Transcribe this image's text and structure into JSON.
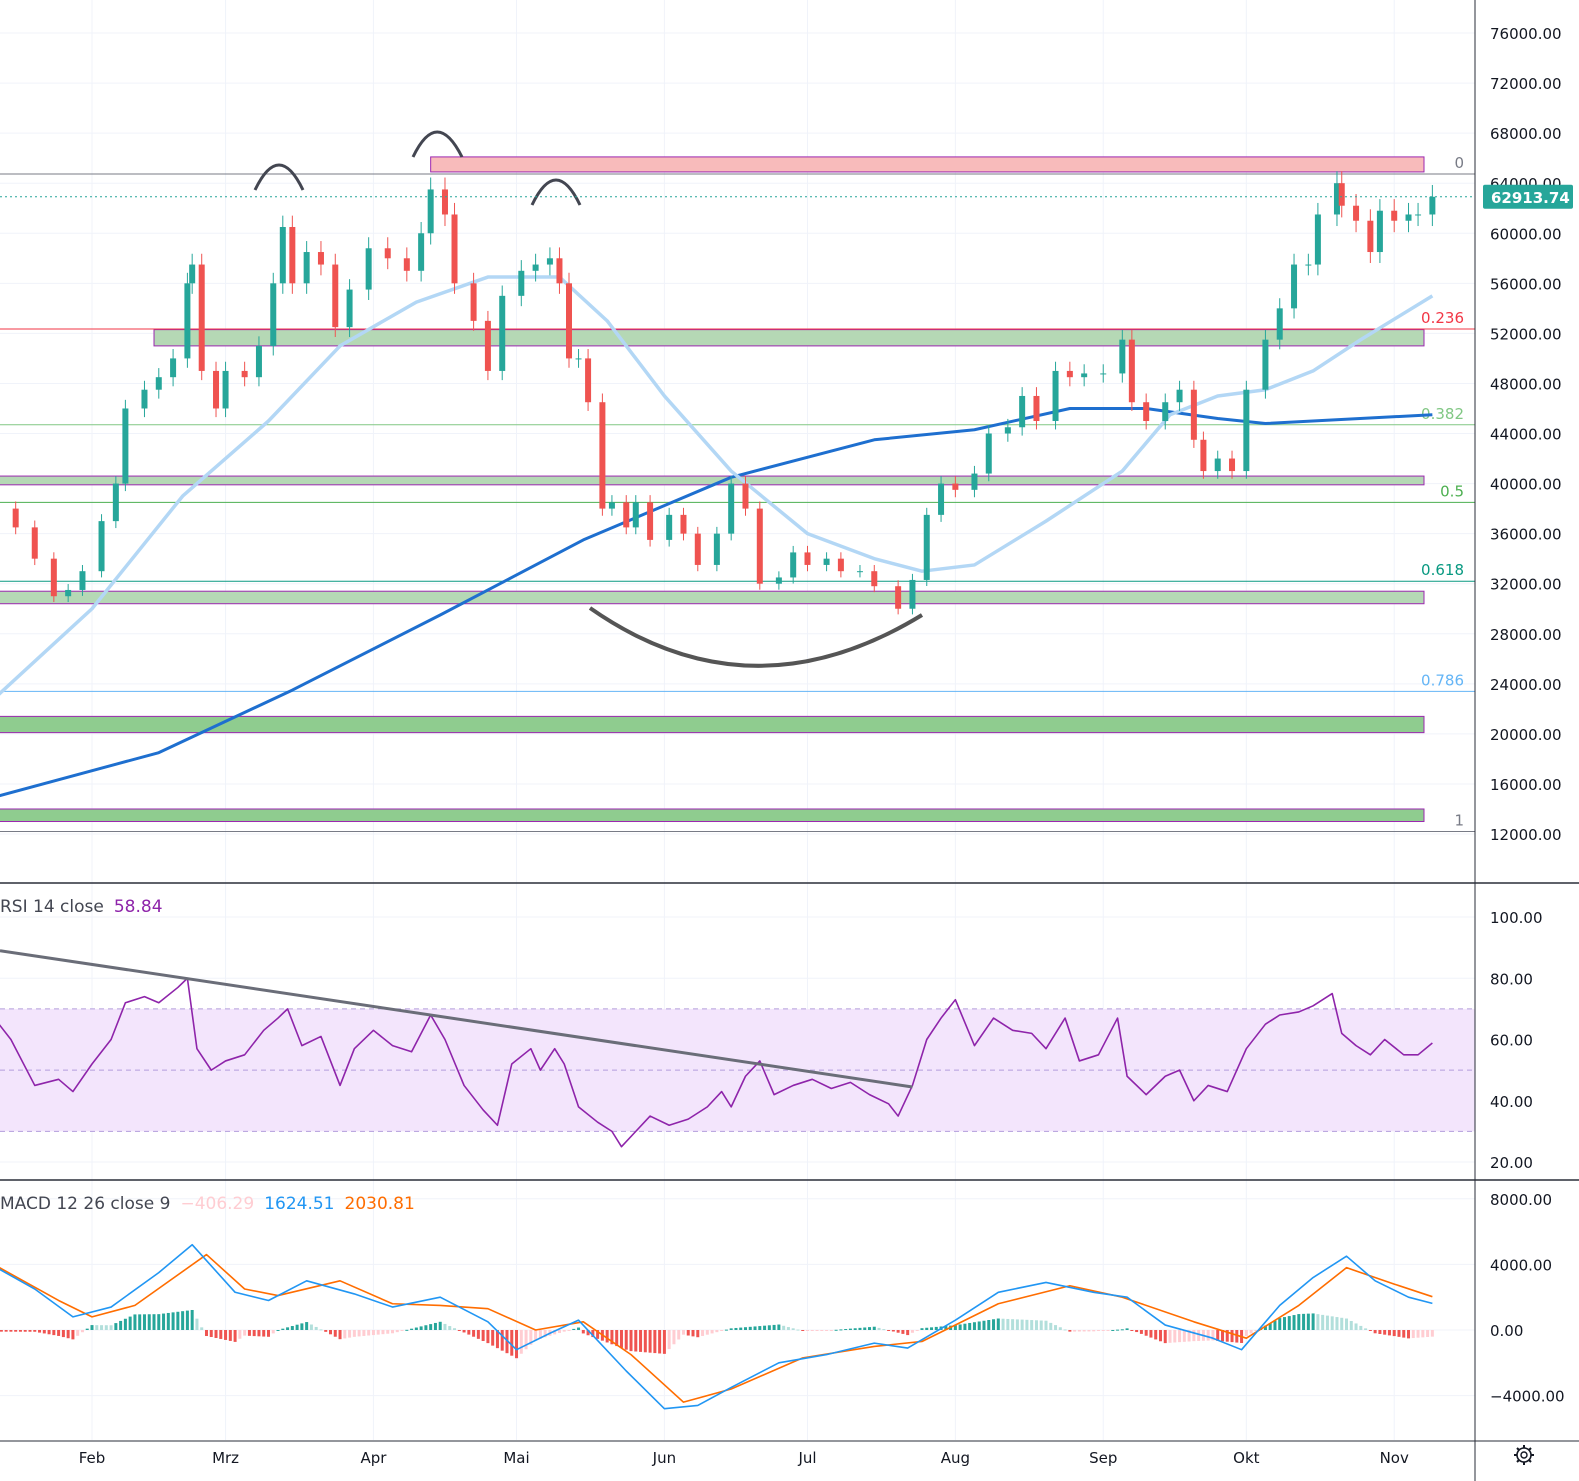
{
  "chart_data": {
    "type": "candlestick",
    "price_axis": {
      "ticks": [
        76000,
        72000,
        68000,
        64000,
        60000,
        56000,
        52000,
        48000,
        44000,
        40000,
        36000,
        32000,
        28000,
        24000,
        20000,
        16000,
        12000
      ],
      "ylim": [
        12000,
        76000
      ],
      "decimals": 2
    },
    "time_axis": {
      "ticks": [
        {
          "label": "Feb",
          "date": "02-01"
        },
        {
          "label": "Mrz",
          "date": "03-01"
        },
        {
          "label": "Apr",
          "date": "04-01"
        },
        {
          "label": "Mai",
          "date": "05-01"
        },
        {
          "label": "Jun",
          "date": "06-01"
        },
        {
          "label": "Jul",
          "date": "07-01"
        },
        {
          "label": "Aug",
          "date": "08-01"
        },
        {
          "label": "Sep",
          "date": "09-01"
        },
        {
          "label": "Okt",
          "date": "10-01"
        },
        {
          "label": "Nov",
          "date": "11-01"
        }
      ]
    },
    "last_price": {
      "value": "62913.74",
      "numeric": 62913.74,
      "color": "#26a69a"
    },
    "colors": {
      "up": "#26a69a",
      "down": "#ef5350",
      "ma_fast": "#b3d7f5",
      "ma_slow": "#1e6fcf",
      "rsi": "#8e24aa",
      "macd": "#2196f3",
      "signal": "#ff6d00",
      "hist_up_strong": "#26a69a",
      "hist_up_weak": "#b2dfdb",
      "hist_down_strong": "#ef5350",
      "hist_down_weak": "#ffcdd2"
    },
    "closes": [
      [
        "01-12",
        38000
      ],
      [
        "01-16",
        36500
      ],
      [
        "01-20",
        34000
      ],
      [
        "01-24",
        31000
      ],
      [
        "01-27",
        31500
      ],
      [
        "01-30",
        33000
      ],
      [
        "02-03",
        37000
      ],
      [
        "02-06",
        40000
      ],
      [
        "02-08",
        46000
      ],
      [
        "02-12",
        47500
      ],
      [
        "02-15",
        48500
      ],
      [
        "02-18",
        50000
      ],
      [
        "02-21",
        56000
      ],
      [
        "02-22",
        57500
      ],
      [
        "02-24",
        49000
      ],
      [
        "02-27",
        46000
      ],
      [
        "03-01",
        49000
      ],
      [
        "03-05",
        48500
      ],
      [
        "03-08",
        51000
      ],
      [
        "03-11",
        56000
      ],
      [
        "03-13",
        60500
      ],
      [
        "03-15",
        56000
      ],
      [
        "03-18",
        58500
      ],
      [
        "03-21",
        57500
      ],
      [
        "03-24",
        52500
      ],
      [
        "03-27",
        55500
      ],
      [
        "03-31",
        58800
      ],
      [
        "04-04",
        58000
      ],
      [
        "04-08",
        57000
      ],
      [
        "04-11",
        60000
      ],
      [
        "04-13",
        63500
      ],
      [
        "04-16",
        61500
      ],
      [
        "04-18",
        56000
      ],
      [
        "04-22",
        53000
      ],
      [
        "04-25",
        49000
      ],
      [
        "04-28",
        55000
      ],
      [
        "05-02",
        57000
      ],
      [
        "05-05",
        57500
      ],
      [
        "05-08",
        58000
      ],
      [
        "05-10",
        56000
      ],
      [
        "05-12",
        50000
      ],
      [
        "05-14",
        50000
      ],
      [
        "05-16",
        46500
      ],
      [
        "05-19",
        38000
      ],
      [
        "05-21",
        38500
      ],
      [
        "05-24",
        36500
      ],
      [
        "05-26",
        38500
      ],
      [
        "05-29",
        35500
      ],
      [
        "06-02",
        37500
      ],
      [
        "06-05",
        36000
      ],
      [
        "06-08",
        33500
      ],
      [
        "06-12",
        36000
      ],
      [
        "06-15",
        40000
      ],
      [
        "06-18",
        38000
      ],
      [
        "06-21",
        32000
      ],
      [
        "06-25",
        32500
      ],
      [
        "06-28",
        34500
      ],
      [
        "07-01",
        33500
      ],
      [
        "07-05",
        34000
      ],
      [
        "07-08",
        33000
      ],
      [
        "07-12",
        33000
      ],
      [
        "07-15",
        31800
      ],
      [
        "07-20",
        30000
      ],
      [
        "07-23",
        32300
      ],
      [
        "07-26",
        37500
      ],
      [
        "07-29",
        40000
      ],
      [
        "08-01",
        39500
      ],
      [
        "08-05",
        40800
      ],
      [
        "08-08",
        44000
      ],
      [
        "08-12",
        44500
      ],
      [
        "08-15",
        47000
      ],
      [
        "08-18",
        45000
      ],
      [
        "08-22",
        49000
      ],
      [
        "08-25",
        48500
      ],
      [
        "08-28",
        48800
      ],
      [
        "09-01",
        48800
      ],
      [
        "09-05",
        51500
      ],
      [
        "09-07",
        46500
      ],
      [
        "09-10",
        45000
      ],
      [
        "09-14",
        46500
      ],
      [
        "09-17",
        47500
      ],
      [
        "09-20",
        43500
      ],
      [
        "09-22",
        41000
      ],
      [
        "09-25",
        42000
      ],
      [
        "09-28",
        41000
      ],
      [
        "10-01",
        47500
      ],
      [
        "10-05",
        51500
      ],
      [
        "10-08",
        54000
      ],
      [
        "10-11",
        57500
      ],
      [
        "10-14",
        57500
      ],
      [
        "10-16",
        61500
      ],
      [
        "10-20",
        64000
      ],
      [
        "10-21",
        62200
      ],
      [
        "10-24",
        61000
      ],
      [
        "10-27",
        58500
      ],
      [
        "10-29",
        61800
      ],
      [
        "11-01",
        61000
      ],
      [
        "11-04",
        61500
      ],
      [
        "11-06",
        61500
      ],
      [
        "11-09",
        62913.74
      ]
    ],
    "ma_fast": [
      [
        "01-12",
        23000
      ],
      [
        "02-01",
        30000
      ],
      [
        "02-20",
        39000
      ],
      [
        "03-10",
        45000
      ],
      [
        "03-25",
        51000
      ],
      [
        "04-10",
        54500
      ],
      [
        "04-25",
        56500
      ],
      [
        "05-10",
        56500
      ],
      [
        "05-20",
        53000
      ],
      [
        "06-01",
        47000
      ],
      [
        "06-15",
        41000
      ],
      [
        "07-01",
        36000
      ],
      [
        "07-15",
        34000
      ],
      [
        "07-25",
        33000
      ],
      [
        "08-05",
        33500
      ],
      [
        "08-20",
        37000
      ],
      [
        "09-05",
        41000
      ],
      [
        "09-15",
        45500
      ],
      [
        "09-25",
        47000
      ],
      [
        "10-05",
        47500
      ],
      [
        "10-15",
        49000
      ],
      [
        "10-25",
        51500
      ],
      [
        "11-09",
        55000
      ]
    ],
    "ma_slow": [
      [
        "01-12",
        15000
      ],
      [
        "02-15",
        18500
      ],
      [
        "03-15",
        23500
      ],
      [
        "04-15",
        29500
      ],
      [
        "05-15",
        35500
      ],
      [
        "06-15",
        40500
      ],
      [
        "07-15",
        43500
      ],
      [
        "08-05",
        44300
      ],
      [
        "08-25",
        46000
      ],
      [
        "09-10",
        46000
      ],
      [
        "09-25",
        45200
      ],
      [
        "10-05",
        44800
      ],
      [
        "11-09",
        45500
      ]
    ],
    "fib_levels": [
      {
        "label": "0",
        "price": 64734,
        "color": "#787b86"
      },
      {
        "label": "0.236",
        "price": 52350,
        "color": "#f23645"
      },
      {
        "label": "0.382",
        "price": 44700,
        "color": "#81c784"
      },
      {
        "label": "0.5",
        "price": 38500,
        "color": "#4caf50"
      },
      {
        "label": "0.618",
        "price": 32200,
        "color": "#089981"
      },
      {
        "label": "0.786",
        "price": 23400,
        "color": "#64b5f6"
      },
      {
        "label": "1",
        "price": 12200,
        "color": "#787b86"
      }
    ],
    "zones": [
      {
        "from": "04-13",
        "to": "11-09",
        "low": 64900,
        "high": 66100,
        "color": "#f8bbbb"
      },
      {
        "from": "02-14",
        "to": "11-09",
        "low": 51000,
        "high": 52300,
        "color": "#b5d8b5"
      },
      {
        "from": "01-12",
        "to": "11-09",
        "low": 39900,
        "high": 40600,
        "color": "#b5d8b5"
      },
      {
        "from": "01-12",
        "to": "11-09",
        "low": 30400,
        "high": 31400,
        "color": "#b5d8b5"
      },
      {
        "from": "01-12",
        "to": "11-09",
        "low": 20100,
        "high": 21400,
        "color": "#8fcc8f"
      },
      {
        "from": "01-12",
        "to": "11-09",
        "low": 13000,
        "high": 14000,
        "color": "#8fcc8f"
      }
    ],
    "rsi": {
      "label": "RSI 14 close",
      "value": "58.84",
      "ticks": [
        100,
        80,
        60,
        40,
        20
      ],
      "ylim": [
        20,
        100
      ],
      "band": [
        30,
        70
      ],
      "midline": 50,
      "trendline": [
        [
          "01-12",
          89
        ],
        [
          "07-23",
          44.5
        ]
      ],
      "values": [
        [
          "01-12",
          66
        ],
        [
          "01-15",
          60
        ],
        [
          "01-20",
          45
        ],
        [
          "01-25",
          47
        ],
        [
          "01-28",
          43
        ],
        [
          "02-01",
          52
        ],
        [
          "02-05",
          60
        ],
        [
          "02-08",
          72
        ],
        [
          "02-12",
          74
        ],
        [
          "02-15",
          72
        ],
        [
          "02-19",
          77
        ],
        [
          "02-21",
          80
        ],
        [
          "02-23",
          57
        ],
        [
          "02-26",
          50
        ],
        [
          "03-01",
          53
        ],
        [
          "03-05",
          55
        ],
        [
          "03-09",
          63
        ],
        [
          "03-12",
          67
        ],
        [
          "03-14",
          70
        ],
        [
          "03-17",
          58
        ],
        [
          "03-21",
          61
        ],
        [
          "03-25",
          45
        ],
        [
          "03-28",
          57
        ],
        [
          "04-01",
          63
        ],
        [
          "04-05",
          58
        ],
        [
          "04-09",
          56
        ],
        [
          "04-13",
          68
        ],
        [
          "04-16",
          60
        ],
        [
          "04-20",
          45
        ],
        [
          "04-24",
          37
        ],
        [
          "04-27",
          32
        ],
        [
          "04-30",
          52
        ],
        [
          "05-04",
          57
        ],
        [
          "05-06",
          50
        ],
        [
          "05-09",
          57
        ],
        [
          "05-11",
          52
        ],
        [
          "05-14",
          38
        ],
        [
          "05-18",
          33
        ],
        [
          "05-21",
          30
        ],
        [
          "05-23",
          25
        ],
        [
          "05-26",
          30
        ],
        [
          "05-29",
          35
        ],
        [
          "06-02",
          32
        ],
        [
          "06-06",
          34
        ],
        [
          "06-10",
          38
        ],
        [
          "06-13",
          43
        ],
        [
          "06-15",
          38
        ],
        [
          "06-18",
          48
        ],
        [
          "06-21",
          53
        ],
        [
          "06-24",
          42
        ],
        [
          "06-28",
          45
        ],
        [
          "07-02",
          47
        ],
        [
          "07-06",
          44
        ],
        [
          "07-10",
          46
        ],
        [
          "07-14",
          42
        ],
        [
          "07-18",
          39
        ],
        [
          "07-20",
          35
        ],
        [
          "07-23",
          45
        ],
        [
          "07-26",
          60
        ],
        [
          "07-29",
          67
        ],
        [
          "08-01",
          73
        ],
        [
          "08-05",
          58
        ],
        [
          "08-09",
          67
        ],
        [
          "08-13",
          63
        ],
        [
          "08-17",
          62
        ],
        [
          "08-20",
          57
        ],
        [
          "08-24",
          67
        ],
        [
          "08-27",
          53
        ],
        [
          "08-31",
          55
        ],
        [
          "09-04",
          67
        ],
        [
          "09-06",
          48
        ],
        [
          "09-10",
          42
        ],
        [
          "09-14",
          48
        ],
        [
          "09-17",
          50
        ],
        [
          "09-20",
          40
        ],
        [
          "09-23",
          45
        ],
        [
          "09-27",
          43
        ],
        [
          "10-01",
          57
        ],
        [
          "10-05",
          65
        ],
        [
          "10-08",
          68
        ],
        [
          "10-12",
          69
        ],
        [
          "10-15",
          71
        ],
        [
          "10-19",
          75
        ],
        [
          "10-21",
          62
        ],
        [
          "10-24",
          58
        ],
        [
          "10-27",
          55
        ],
        [
          "10-30",
          60
        ],
        [
          "11-03",
          55
        ],
        [
          "11-06",
          55
        ],
        [
          "11-09",
          58.84
        ]
      ]
    },
    "macd": {
      "label": "MACD 12 26 close 9",
      "histogram_value": "−406.29",
      "macd_value": "1624.51",
      "signal_value": "2030.81",
      "ticks": [
        {
          "v": 8000,
          "label": "8000.00"
        },
        {
          "v": 4000,
          "label": "4000.00"
        },
        {
          "v": 0,
          "label": "0.00"
        },
        {
          "v": -4000,
          "label": "−4000.00"
        }
      ],
      "ylim": [
        -6000,
        8000
      ],
      "macd_line": [
        [
          "01-12",
          3800
        ],
        [
          "01-20",
          2500
        ],
        [
          "01-28",
          800
        ],
        [
          "02-05",
          1400
        ],
        [
          "02-15",
          3500
        ],
        [
          "02-22",
          5200
        ],
        [
          "03-03",
          2300
        ],
        [
          "03-10",
          1800
        ],
        [
          "03-18",
          3000
        ],
        [
          "03-28",
          2200
        ],
        [
          "04-05",
          1400
        ],
        [
          "04-15",
          2000
        ],
        [
          "04-25",
          500
        ],
        [
          "05-01",
          -1200
        ],
        [
          "05-08",
          -200
        ],
        [
          "05-14",
          600
        ],
        [
          "05-24",
          -2500
        ],
        [
          "06-01",
          -4800
        ],
        [
          "06-08",
          -4600
        ],
        [
          "06-15",
          -3500
        ],
        [
          "06-25",
          -2000
        ],
        [
          "07-05",
          -1500
        ],
        [
          "07-15",
          -800
        ],
        [
          "07-22",
          -1100
        ],
        [
          "08-01",
          600
        ],
        [
          "08-10",
          2300
        ],
        [
          "08-20",
          2900
        ],
        [
          "08-30",
          2300
        ],
        [
          "09-06",
          2000
        ],
        [
          "09-14",
          300
        ],
        [
          "09-24",
          -500
        ],
        [
          "09-30",
          -1200
        ],
        [
          "10-08",
          1500
        ],
        [
          "10-15",
          3200
        ],
        [
          "10-22",
          4500
        ],
        [
          "10-28",
          3000
        ],
        [
          "11-04",
          2000
        ],
        [
          "11-09",
          1624.51
        ]
      ],
      "signal_line": [
        [
          "01-12",
          3900
        ],
        [
          "01-25",
          1800
        ],
        [
          "02-01",
          800
        ],
        [
          "02-10",
          1500
        ],
        [
          "02-25",
          4600
        ],
        [
          "03-05",
          2500
        ],
        [
          "03-12",
          2100
        ],
        [
          "03-25",
          3000
        ],
        [
          "04-05",
          1600
        ],
        [
          "04-15",
          1500
        ],
        [
          "04-25",
          1300
        ],
        [
          "05-05",
          0
        ],
        [
          "05-15",
          500
        ],
        [
          "05-25",
          -1500
        ],
        [
          "06-05",
          -4400
        ],
        [
          "06-15",
          -3600
        ],
        [
          "06-30",
          -1700
        ],
        [
          "07-15",
          -1000
        ],
        [
          "07-25",
          -700
        ],
        [
          "08-10",
          1600
        ],
        [
          "08-25",
          2700
        ],
        [
          "09-05",
          2000
        ],
        [
          "09-20",
          500
        ],
        [
          "10-01",
          -500
        ],
        [
          "10-12",
          1500
        ],
        [
          "10-22",
          3800
        ],
        [
          "11-01",
          2800
        ],
        [
          "11-09",
          2030.81
        ]
      ]
    }
  },
  "icons": {
    "settings": "gear-icon"
  }
}
